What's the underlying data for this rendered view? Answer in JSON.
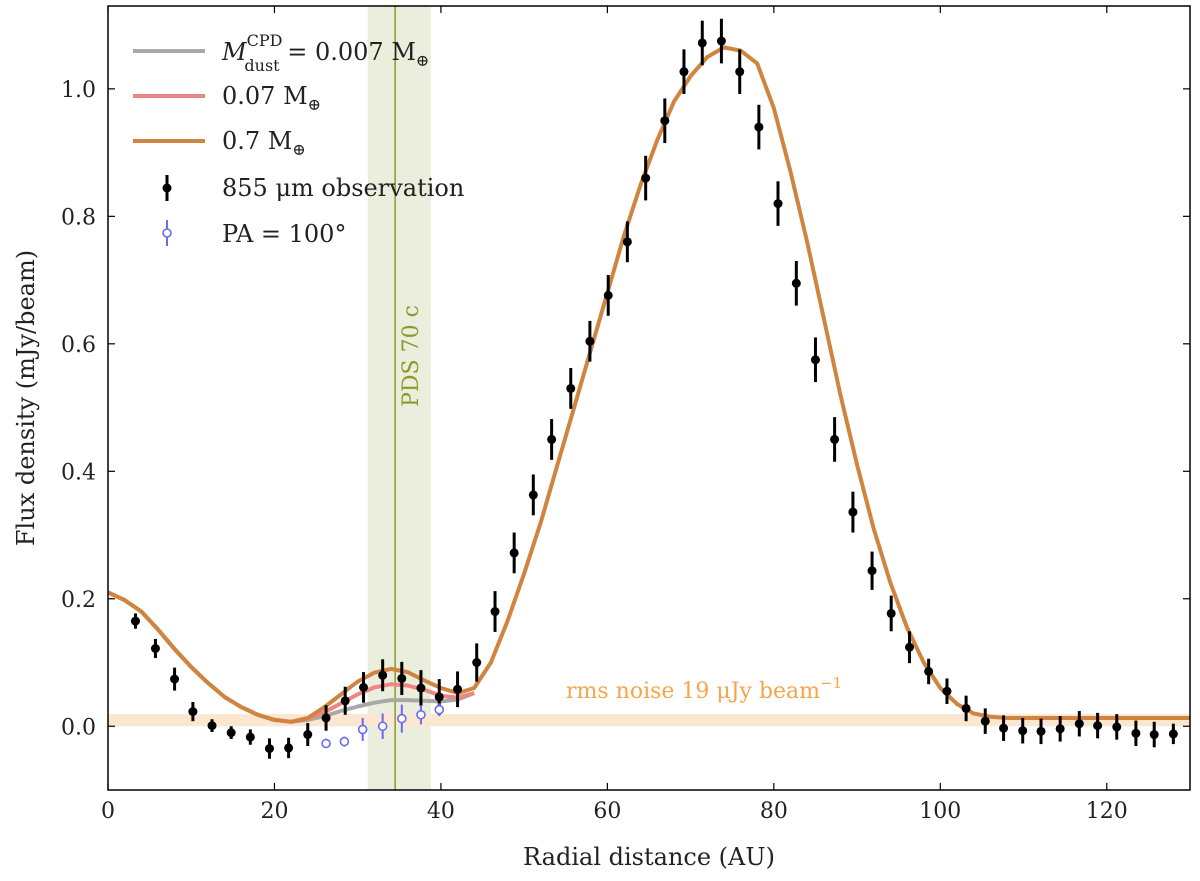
{
  "chart_data": {
    "type": "line",
    "title": "",
    "xlabel": "Radial distance (AU)",
    "ylabel": "Flux density (mJy/beam)",
    "xlim": [
      0,
      130
    ],
    "ylim": [
      -0.1,
      1.13
    ],
    "xticks": [
      0,
      20,
      40,
      60,
      80,
      100,
      120
    ],
    "yticks": [
      0.0,
      0.2,
      0.4,
      0.6,
      0.8,
      1.0
    ],
    "xtick_labels": [
      "0",
      "20",
      "40",
      "60",
      "80",
      "100",
      "120"
    ],
    "ytick_labels": [
      "0.0",
      "0.2",
      "0.4",
      "0.6",
      "0.8",
      "1.0"
    ],
    "legend_position": "top-left",
    "planet_band": {
      "label": "PDS 70 c",
      "x": 34.5,
      "xmin": 31.2,
      "xmax": 38.8,
      "color": "#eceedd",
      "line_color": "#8a9a2a",
      "text_color": "#8a9a2a"
    },
    "noise_band": {
      "label": "rms noise 19 μJy beam",
      "exponent": "−1",
      "ymin": 0.0,
      "ymax": 0.019,
      "color": "#fbe6d0",
      "text_color": "#f7a54a"
    },
    "series": [
      {
        "name": "M_dust^CPD = 0.007 M⊕",
        "legend_main": "M",
        "legend_sup": "CPD",
        "legend_sub": "dust",
        "legend_rest": " = 0.007 M",
        "legend_suffix": "⊕",
        "color": "#a8a8a8",
        "x": [
          0,
          2,
          4,
          6,
          8,
          10,
          12,
          14,
          16,
          18,
          20,
          22,
          24,
          26,
          28,
          30,
          32,
          34,
          36,
          38,
          40,
          42,
          44
        ],
        "y": [
          0.21,
          0.198,
          0.18,
          0.152,
          0.121,
          0.093,
          0.068,
          0.046,
          0.03,
          0.018,
          0.01,
          0.007,
          0.01,
          0.016,
          0.024,
          0.031,
          0.037,
          0.041,
          0.041,
          0.04,
          0.039,
          0.042,
          0.052
        ]
      },
      {
        "name": "0.07 M⊕",
        "legend_main": "0.07 M",
        "legend_suffix": "⊕",
        "color": "#ee8585",
        "x": [
          0,
          2,
          4,
          6,
          8,
          10,
          12,
          14,
          16,
          18,
          20,
          22,
          24,
          26,
          28,
          30,
          32,
          34,
          36,
          38,
          40,
          42,
          44
        ],
        "y": [
          0.21,
          0.198,
          0.18,
          0.152,
          0.121,
          0.093,
          0.068,
          0.046,
          0.03,
          0.018,
          0.01,
          0.007,
          0.012,
          0.022,
          0.036,
          0.05,
          0.061,
          0.066,
          0.064,
          0.057,
          0.048,
          0.045,
          0.052
        ]
      },
      {
        "name": "0.7 M⊕",
        "legend_main": "0.7 M",
        "legend_suffix": "⊕",
        "color": "#cf8540",
        "x": [
          0,
          2,
          4,
          6,
          8,
          10,
          12,
          14,
          16,
          18,
          20,
          22,
          24,
          26,
          28,
          30,
          32,
          34,
          36,
          38,
          40,
          42,
          44,
          46,
          48,
          50,
          52,
          54,
          56,
          58,
          60,
          62,
          64,
          66,
          68,
          70,
          72,
          74,
          76,
          78,
          80,
          82,
          84,
          86,
          88,
          90,
          92,
          94,
          96,
          98,
          100,
          102,
          104,
          106,
          108,
          110,
          112,
          114,
          116,
          118,
          120,
          122,
          124,
          126,
          128,
          130
        ],
        "y": [
          0.21,
          0.198,
          0.18,
          0.152,
          0.121,
          0.093,
          0.068,
          0.046,
          0.03,
          0.018,
          0.01,
          0.007,
          0.013,
          0.03,
          0.05,
          0.07,
          0.084,
          0.09,
          0.085,
          0.072,
          0.06,
          0.052,
          0.06,
          0.1,
          0.165,
          0.24,
          0.32,
          0.41,
          0.5,
          0.59,
          0.68,
          0.77,
          0.85,
          0.92,
          0.98,
          1.02,
          1.05,
          1.065,
          1.06,
          1.04,
          0.97,
          0.87,
          0.76,
          0.64,
          0.52,
          0.41,
          0.31,
          0.225,
          0.155,
          0.1,
          0.06,
          0.035,
          0.02,
          0.015,
          0.013,
          0.013,
          0.013,
          0.013,
          0.013,
          0.013,
          0.013,
          0.013,
          0.013,
          0.013,
          0.013,
          0.013
        ]
      },
      {
        "name": "855 μm observation",
        "type": "errorbar",
        "color": "#000000",
        "x": [
          3.3,
          5.7,
          8.0,
          10.2,
          12.5,
          14.8,
          17.1,
          19.4,
          21.7,
          24.0,
          26.2,
          28.5,
          30.7,
          33.0,
          35.3,
          37.6,
          39.8,
          42.0,
          44.3,
          46.5,
          48.8,
          51.1,
          53.3,
          55.6,
          57.9,
          60.1,
          62.4,
          64.6,
          66.9,
          69.2,
          71.4,
          73.7,
          75.9,
          78.2,
          80.5,
          82.7,
          85.0,
          87.3,
          89.5,
          91.8,
          94.1,
          96.3,
          98.6,
          100.8,
          103.1,
          105.4,
          107.6,
          109.9,
          112.1,
          114.4,
          116.7,
          118.9,
          121.2,
          123.5,
          125.7,
          128.0
        ],
        "y": [
          0.165,
          0.122,
          0.074,
          0.023,
          0.001,
          -0.01,
          -0.017,
          -0.035,
          -0.034,
          -0.013,
          0.013,
          0.04,
          0.061,
          0.08,
          0.075,
          0.06,
          0.046,
          0.058,
          0.1,
          0.18,
          0.272,
          0.363,
          0.45,
          0.53,
          0.604,
          0.676,
          0.76,
          0.86,
          0.95,
          1.027,
          1.072,
          1.075,
          1.027,
          0.94,
          0.82,
          0.695,
          0.575,
          0.45,
          0.336,
          0.244,
          0.177,
          0.124,
          0.086,
          0.055,
          0.028,
          0.008,
          -0.003,
          -0.007,
          -0.008,
          -0.004,
          0.004,
          0.001,
          -0.001,
          -0.011,
          -0.013,
          -0.012
        ],
        "yerr": [
          0.012,
          0.015,
          0.018,
          0.015,
          0.01,
          0.01,
          0.012,
          0.016,
          0.016,
          0.018,
          0.02,
          0.022,
          0.024,
          0.025,
          0.026,
          0.028,
          0.028,
          0.028,
          0.03,
          0.032,
          0.032,
          0.032,
          0.032,
          0.032,
          0.032,
          0.032,
          0.032,
          0.035,
          0.035,
          0.035,
          0.035,
          0.035,
          0.035,
          0.035,
          0.035,
          0.035,
          0.035,
          0.035,
          0.032,
          0.03,
          0.028,
          0.025,
          0.02,
          0.02,
          0.02,
          0.02,
          0.02,
          0.02,
          0.02,
          0.02,
          0.02,
          0.02,
          0.02,
          0.02,
          0.02,
          0.016
        ]
      },
      {
        "name": "PA = 100°",
        "type": "errorbar-open",
        "color": "#6a6af2",
        "x": [
          26.2,
          28.4,
          30.6,
          33.0,
          35.3,
          37.6,
          39.8
        ],
        "y": [
          -0.027,
          -0.024,
          -0.005,
          0.0,
          0.012,
          0.018,
          0.026
        ],
        "yerr": [
          0.006,
          0.008,
          0.018,
          0.02,
          0.022,
          0.015,
          0.01
        ]
      }
    ]
  }
}
